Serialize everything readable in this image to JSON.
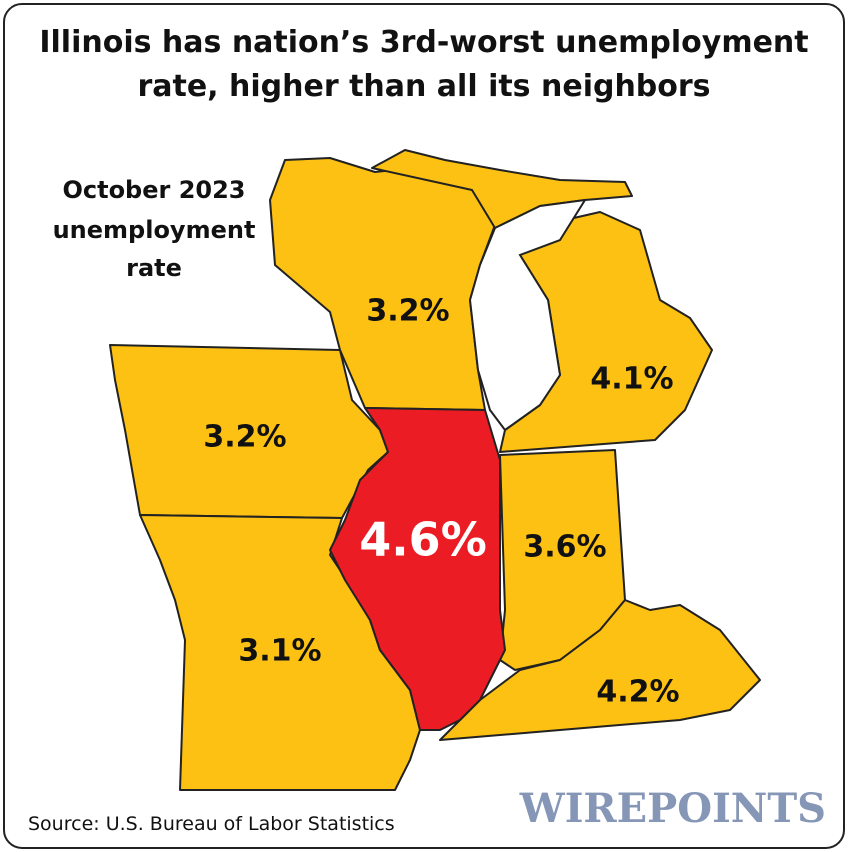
{
  "title": "Illinois has nation’s 3rd-worst unemployment rate, higher than all its neighbors",
  "legend_label": [
    "October 2023",
    "unemployment",
    "rate"
  ],
  "regions": [
    {
      "label": "3.2%"
    },
    {
      "label": "4.1%"
    },
    {
      "label": "3.2%"
    },
    {
      "label": "4.6%"
    },
    {
      "label": "3.6%"
    },
    {
      "label": "3.1%"
    },
    {
      "label": "4.2%"
    }
  ],
  "source": "Source: U.S. Bureau of Labor Statistics",
  "logo": "WIREPOINTS"
}
